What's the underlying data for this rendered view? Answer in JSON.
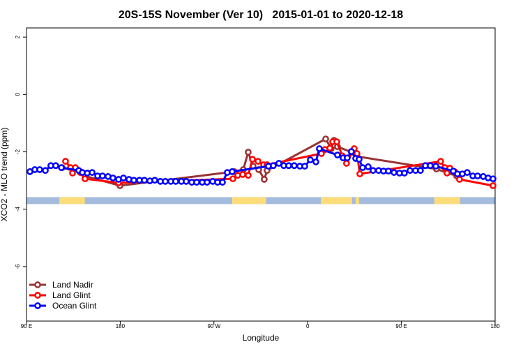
{
  "chart_data": {
    "type": "line",
    "title": "20S-15S November (Ver 10)   2015-01-01 to 2020-12-18",
    "x_label": "Longitude",
    "y_label": "XCO2 - MLO trend (ppm)",
    "xlim": [
      90,
      540
    ],
    "ylim": [
      -7.9,
      2.32
    ],
    "xticks": [
      {
        "value": 90,
        "label": "90 E"
      },
      180,
      {
        "value": 270,
        "label": "90 W"
      },
      {
        "value": 360,
        "label": "0"
      },
      {
        "value": 450,
        "label": "90 E"
      },
      {
        "value": 540,
        "label": "180"
      }
    ],
    "yticks": [
      2,
      0,
      -2,
      -4,
      -6
    ],
    "legend": "bottom-left",
    "surface_strip": {
      "y": -3.7,
      "ocean_color": "#a4bbdd",
      "land_color": "#fddc7a",
      "land": [
        [
          121.5,
          146
        ],
        [
          287.5,
          320
        ],
        [
          372.6,
          402.7
        ],
        [
          406,
          409.5
        ],
        [
          481.7,
          506.5
        ]
      ]
    },
    "series": [
      {
        "name": "Land Nadir",
        "color": "#993333",
        "x": [
          124.2,
          143.6,
          146.2,
          179.7,
          289.5,
          298.2,
          302.9,
          307.6,
          313.0,
          318.3,
          321.0,
          377.3,
          382.6,
          385.3,
          388.6,
          402.0,
          407.4,
          483.7,
          503.1
        ],
        "values": [
          -2.55,
          -2.72,
          -2.84,
          -3.18,
          -2.69,
          -2.62,
          -2.01,
          -2.5,
          -2.62,
          -2.96,
          -2.65,
          -1.55,
          -1.89,
          -1.6,
          -1.82,
          -2.01,
          -2.16,
          -2.6,
          -2.84
        ]
      },
      {
        "name": "Land Glint",
        "color": "#ff0000",
        "x": [
          127.5,
          132.2,
          134.2,
          136.9,
          141.6,
          146.2,
          178.4,
          288.2,
          292.9,
          297.6,
          302.9,
          307.0,
          312.3,
          317.7,
          321.0,
          373.2,
          376.6,
          381.3,
          384.0,
          388.0,
          393.3,
          397.3,
          404.7,
          407.4,
          410.1,
          487.7,
          491.8,
          493.8,
          496.5,
          501.1,
          505.8,
          538.0
        ],
        "values": [
          -2.33,
          -2.55,
          -2.74,
          -2.55,
          -2.72,
          -2.94,
          -3.08,
          -2.94,
          -2.82,
          -2.79,
          -2.82,
          -2.26,
          -2.33,
          -2.45,
          -2.45,
          -2.06,
          -1.92,
          -1.87,
          -1.65,
          -1.65,
          -2.14,
          -2.4,
          -1.89,
          -2.06,
          -2.77,
          -2.33,
          -2.55,
          -2.74,
          -2.57,
          -2.69,
          -2.96,
          -3.18
        ]
      },
      {
        "name": "Ocean Glint",
        "color": "#0000ff",
        "x": [
          93.3,
          98.0,
          102.7,
          108.1,
          113.4,
          118.1,
          123.5,
          140.2,
          143.6,
          148.3,
          153.0,
          158.3,
          163.0,
          168.3,
          173.0,
          178.4,
          183.1,
          188.4,
          193.1,
          198.5,
          203.2,
          208.5,
          213.2,
          218.6,
          223.3,
          228.6,
          233.3,
          238.7,
          243.3,
          248.7,
          253.4,
          258.7,
          263.4,
          268.8,
          273.5,
          278.2,
          282.8,
          287.5,
          322.3,
          327.0,
          332.4,
          337.1,
          341.8,
          347.1,
          352.5,
          357.2,
          362.5,
          367.9,
          371.2,
          388.6,
          394.0,
          398.0,
          402.0,
          406.1,
          409.4,
          412.8,
          418.1,
          422.8,
          428.1,
          432.8,
          437.5,
          442.9,
          448.2,
          452.9,
          458.3,
          463.6,
          468.3,
          473.0,
          477.7,
          483.1,
          499.8,
          503.8,
          508.5,
          513.2,
          518.6,
          523.2,
          528.6,
          533.3,
          538.0
        ],
        "values": [
          -2.69,
          -2.62,
          -2.62,
          -2.65,
          -2.48,
          -2.48,
          -2.55,
          -2.65,
          -2.72,
          -2.74,
          -2.72,
          -2.84,
          -2.84,
          -2.86,
          -2.91,
          -2.96,
          -2.91,
          -2.96,
          -2.99,
          -2.99,
          -2.99,
          -3.01,
          -2.99,
          -3.03,
          -3.03,
          -3.03,
          -3.03,
          -3.03,
          -3.03,
          -3.06,
          -3.06,
          -3.06,
          -3.06,
          -3.03,
          -3.06,
          -3.06,
          -2.72,
          -2.69,
          -2.5,
          -2.48,
          -2.4,
          -2.48,
          -2.48,
          -2.48,
          -2.5,
          -2.5,
          -2.28,
          -2.35,
          -1.89,
          -2.11,
          -2.21,
          -2.21,
          -1.99,
          -2.23,
          -2.26,
          -2.55,
          -2.52,
          -2.65,
          -2.65,
          -2.67,
          -2.67,
          -2.72,
          -2.74,
          -2.74,
          -2.65,
          -2.65,
          -2.65,
          -2.48,
          -2.48,
          -2.5,
          -2.67,
          -2.77,
          -2.77,
          -2.72,
          -2.84,
          -2.84,
          -2.86,
          -2.91,
          -2.94
        ]
      }
    ]
  }
}
